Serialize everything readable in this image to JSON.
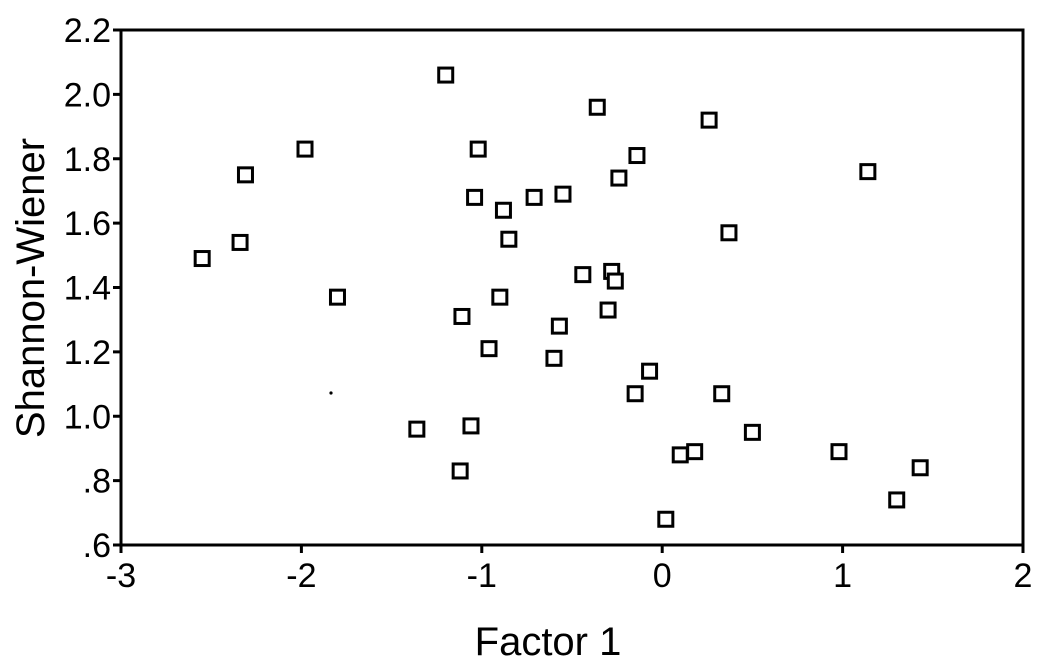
{
  "chart_data": {
    "type": "scatter",
    "xlabel": "Factor 1",
    "ylabel": "Shannon-Wiener",
    "xlim": [
      -3,
      2
    ],
    "ylim": [
      0.6,
      2.2
    ],
    "xticks": [
      -3,
      -2,
      -1,
      0,
      1,
      2
    ],
    "xtick_labels": [
      "-3",
      "-2",
      "-1",
      "0",
      "1",
      "2"
    ],
    "yticks": [
      0.6,
      0.8,
      1.0,
      1.2,
      1.4,
      1.6,
      1.8,
      2.0,
      2.2
    ],
    "ytick_labels": [
      ".6",
      ".8",
      "1.0",
      "1.2",
      "1.4",
      "1.6",
      "1.8",
      "2.0",
      "2.2"
    ],
    "grid": false,
    "marker": "hollow-square",
    "points": [
      {
        "x": -2.55,
        "y": 1.49
      },
      {
        "x": -2.34,
        "y": 1.54
      },
      {
        "x": -2.31,
        "y": 1.75
      },
      {
        "x": -1.98,
        "y": 1.83
      },
      {
        "x": -1.8,
        "y": 1.37
      },
      {
        "x": -1.36,
        "y": 0.96
      },
      {
        "x": -1.2,
        "y": 2.06
      },
      {
        "x": -1.12,
        "y": 0.83
      },
      {
        "x": -1.11,
        "y": 1.31
      },
      {
        "x": -1.06,
        "y": 0.97
      },
      {
        "x": -1.04,
        "y": 1.68
      },
      {
        "x": -1.02,
        "y": 1.83
      },
      {
        "x": -0.96,
        "y": 1.21
      },
      {
        "x": -0.9,
        "y": 1.37
      },
      {
        "x": -0.88,
        "y": 1.64
      },
      {
        "x": -0.85,
        "y": 1.55
      },
      {
        "x": -0.71,
        "y": 1.68
      },
      {
        "x": -0.6,
        "y": 1.18
      },
      {
        "x": -0.57,
        "y": 1.28
      },
      {
        "x": -0.55,
        "y": 1.69
      },
      {
        "x": -0.44,
        "y": 1.44
      },
      {
        "x": -0.36,
        "y": 1.96
      },
      {
        "x": -0.3,
        "y": 1.33
      },
      {
        "x": -0.28,
        "y": 1.45
      },
      {
        "x": -0.26,
        "y": 1.42
      },
      {
        "x": -0.24,
        "y": 1.74
      },
      {
        "x": -0.15,
        "y": 1.07
      },
      {
        "x": -0.14,
        "y": 1.81
      },
      {
        "x": -0.07,
        "y": 1.14
      },
      {
        "x": 0.02,
        "y": 0.68
      },
      {
        "x": 0.1,
        "y": 0.88
      },
      {
        "x": 0.18,
        "y": 0.89
      },
      {
        "x": 0.26,
        "y": 1.92
      },
      {
        "x": 0.33,
        "y": 1.07
      },
      {
        "x": 0.37,
        "y": 1.57
      },
      {
        "x": 0.5,
        "y": 0.95
      },
      {
        "x": 0.98,
        "y": 0.89
      },
      {
        "x": 1.14,
        "y": 1.76
      },
      {
        "x": 1.3,
        "y": 0.74
      },
      {
        "x": 1.43,
        "y": 0.84
      }
    ]
  }
}
